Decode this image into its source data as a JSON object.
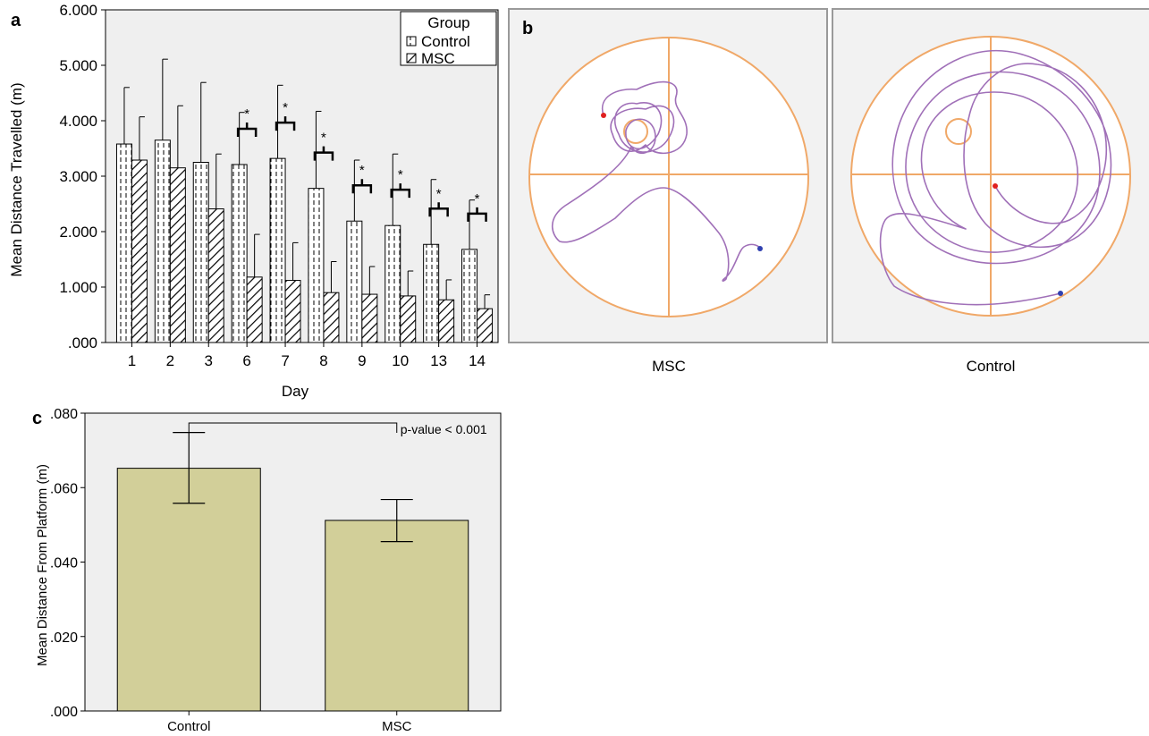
{
  "panels": {
    "a": {
      "letter": "a",
      "chart_data": {
        "type": "bar",
        "xlabel": "Day",
        "ylabel": "Mean Distance Travelled (m)",
        "ylim": [
          0,
          6
        ],
        "yticks": [
          ".000",
          "1.000",
          "2.000",
          "3.000",
          "4.000",
          "5.000",
          "6.000"
        ],
        "categories": [
          "1",
          "2",
          "3",
          "6",
          "7",
          "8",
          "9",
          "10",
          "13",
          "14"
        ],
        "series": [
          {
            "name": "Control",
            "values": [
              3.58,
              3.65,
              3.25,
              3.21,
              3.32,
              2.78,
              2.19,
              2.11,
              1.77,
              1.68
            ],
            "error": [
              1.02,
              1.46,
              1.44,
              0.94,
              1.32,
              1.39,
              1.1,
              1.29,
              1.17,
              0.89
            ]
          },
          {
            "name": "MSC",
            "values": [
              3.29,
              3.15,
              2.41,
              1.18,
              1.12,
              0.9,
              0.87,
              0.84,
              0.77,
              0.61
            ],
            "error": [
              0.78,
              1.12,
              0.99,
              0.77,
              0.68,
              0.56,
              0.5,
              0.45,
              0.36,
              0.25
            ]
          }
        ],
        "significance": [
          {
            "category": "6",
            "marker": "*"
          },
          {
            "category": "7",
            "marker": "*"
          },
          {
            "category": "8",
            "marker": "*"
          },
          {
            "category": "9",
            "marker": "*"
          },
          {
            "category": "10",
            "marker": "*"
          },
          {
            "category": "13",
            "marker": "*"
          },
          {
            "category": "14",
            "marker": "*"
          }
        ],
        "legend": {
          "title": "Group",
          "position": "top-right"
        },
        "grid": false
      }
    },
    "b": {
      "letter": "b",
      "tracks": [
        {
          "caption": "MSC",
          "colors": {
            "arena": "#f0a868",
            "path": "#a070b8",
            "start": "#e02020",
            "end": "#3040b0"
          }
        },
        {
          "caption": "Control",
          "colors": {
            "arena": "#f0a868",
            "path": "#a070b8",
            "start": "#e02020",
            "end": "#3040b0"
          }
        }
      ]
    },
    "c": {
      "letter": "c",
      "chart_data": {
        "type": "bar",
        "xlabel": "",
        "ylabel": "Mean Distance From Platform (m)",
        "ylim": [
          0,
          0.08
        ],
        "yticks": [
          ".000",
          ".020",
          ".040",
          ".060",
          ".080"
        ],
        "categories": [
          "Control",
          "MSC"
        ],
        "values": [
          0.0652,
          0.0512
        ],
        "error_low": [
          0.0558,
          0.0455
        ],
        "error_high": [
          0.0748,
          0.0568
        ],
        "annotation": "p-value < 0.001",
        "bar_color": "#d2cf99",
        "background": "#efefef",
        "grid": false
      }
    }
  }
}
